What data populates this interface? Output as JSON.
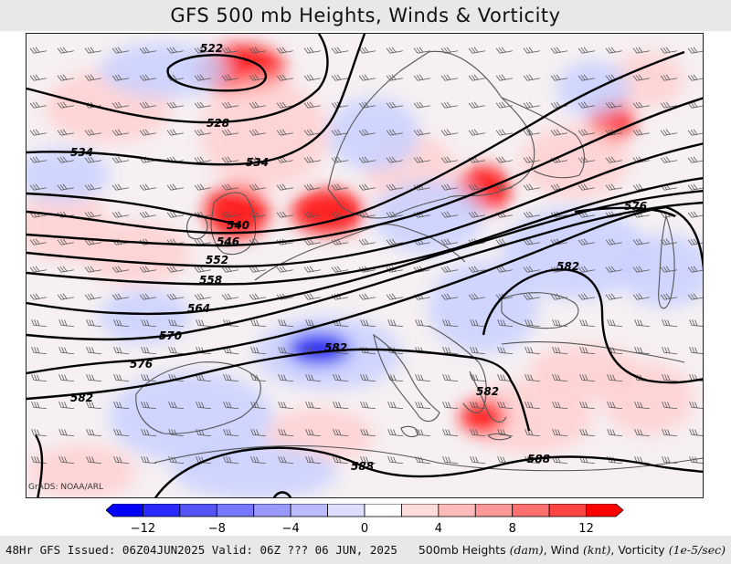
{
  "header": {
    "title": "GFS 500 mb Heights, Winds & Vorticity"
  },
  "map": {
    "credit": "GrADS: NOAA/ARL",
    "height_contours_dam": [
      "522",
      "528",
      "534",
      "534",
      "540",
      "546",
      "552",
      "558",
      "564",
      "570",
      "576",
      "576",
      "582",
      "582",
      "582",
      "582",
      "588",
      "588"
    ],
    "vorticity_colors": {
      "strong_negative": "#1010f0",
      "weak_negative": "#c8d0ff",
      "neutral": "#f6f0f3",
      "weak_positive": "#ffd0d0",
      "strong_positive": "#ff0000"
    },
    "contour_color": "#000000",
    "coastline_color": "#555555",
    "wind_barb_color": "#444444"
  },
  "legend": {
    "ticks": [
      "−12",
      "−8",
      "−4",
      "0",
      "4",
      "8",
      "12"
    ],
    "colors": [
      "#0000ff",
      "#2a2aff",
      "#5555f5",
      "#7777ff",
      "#9999ff",
      "#bbbbff",
      "#ddddff",
      "#ffffff",
      "#ffdddd",
      "#ffbbbb",
      "#ff9999",
      "#ff7070",
      "#ff4444",
      "#ff0000"
    ]
  },
  "footer": {
    "left": "48Hr GFS Issued: 06Z04JUN2025 Valid: 06Z ??? 06 JUN, 2025",
    "right_prefix": "500mb Heights ",
    "heights_unit": "(dam)",
    "right_mid": ", Wind ",
    "wind_unit": "(knt)",
    "right_mid2": ", Vorticity ",
    "vort_unit": "(1e-5/sec)"
  }
}
